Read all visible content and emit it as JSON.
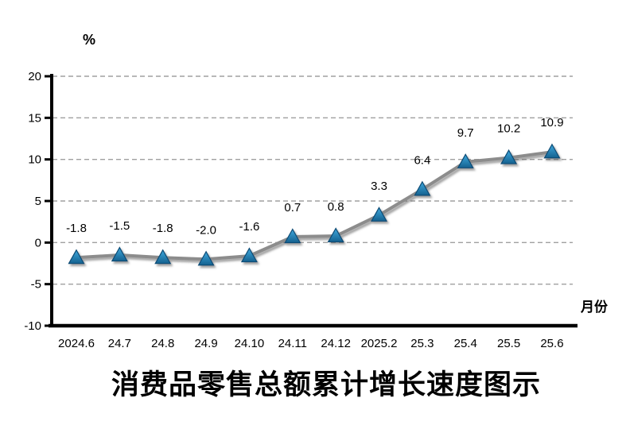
{
  "chart_data": {
    "type": "line",
    "title": "消费品零售总额累计增长速度图示",
    "ylabel": "%",
    "xlabel": "月份",
    "categories": [
      "2024.6",
      "24.7",
      "24.8",
      "24.9",
      "24.10",
      "24.11",
      "24.12",
      "2025.2",
      "25.3",
      "25.4",
      "25.5",
      "25.6"
    ],
    "values": [
      -1.8,
      -1.5,
      -1.8,
      -2.0,
      -1.6,
      0.7,
      0.8,
      3.3,
      6.4,
      9.7,
      10.2,
      10.9
    ],
    "labels": [
      "-1.8",
      "-1.5",
      "-1.8",
      "-2.0",
      "-1.6",
      "0.7",
      "0.8",
      "3.3",
      "6.4",
      "9.7",
      "10.2",
      "10.9"
    ],
    "ylim": [
      -10,
      20
    ],
    "yticks": [
      20,
      15,
      10,
      5,
      0,
      -5,
      -10
    ],
    "ytick_labels": [
      "20",
      "15",
      "10",
      "5",
      "0",
      "-5",
      "-10"
    ],
    "grid": "horizontal-dashed",
    "legend": "none",
    "marker": "triangle-up",
    "colors": {
      "line": "#8C8C8C",
      "gridline": "#A0A0A0",
      "axis": "#000000",
      "marker_fill_top": "#3FA9DE",
      "marker_fill_bottom": "#15618F",
      "marker_stroke": "#0F4C75",
      "text": "#000000"
    }
  }
}
